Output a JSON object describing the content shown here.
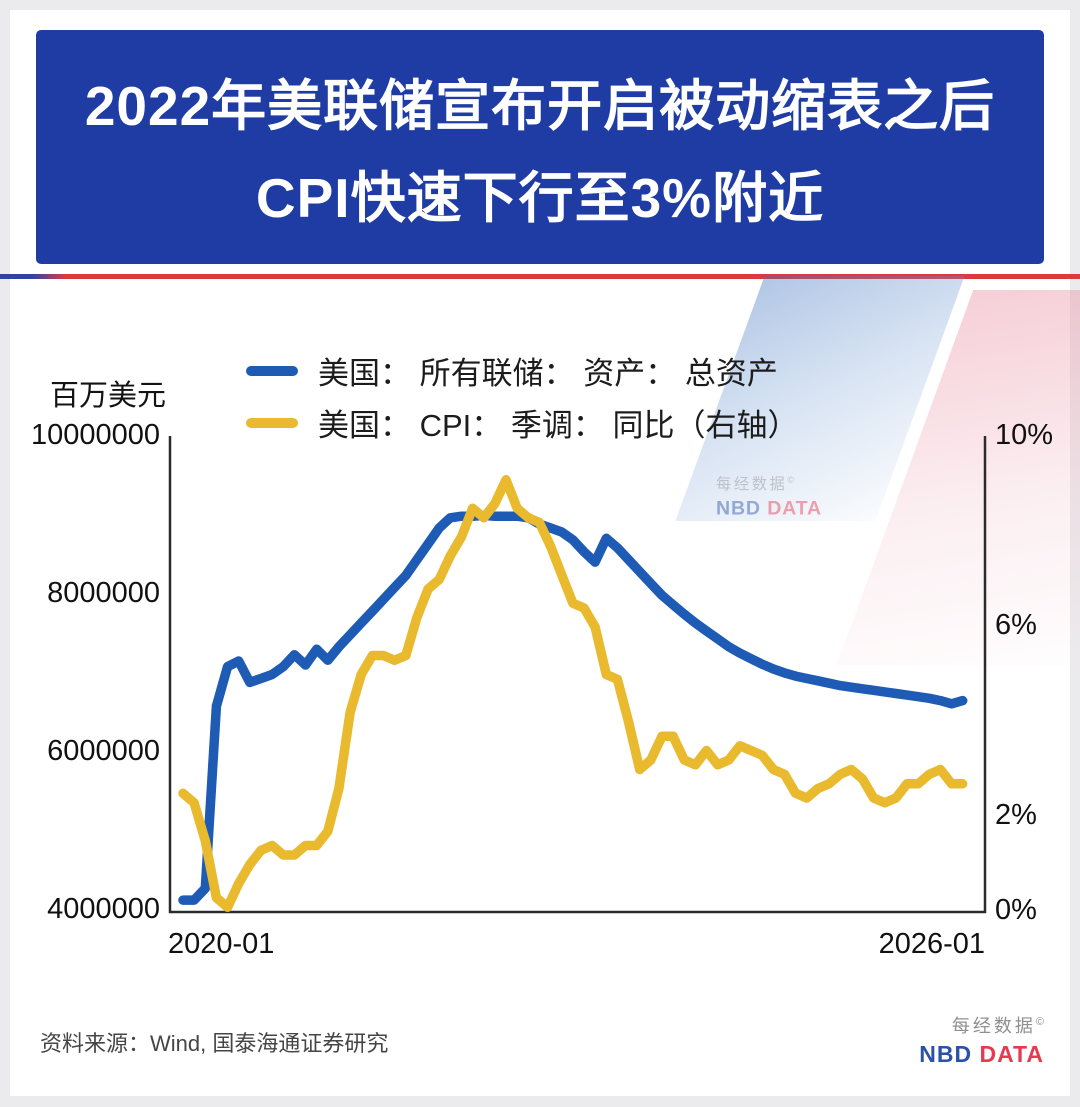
{
  "title": {
    "line1": "2022年美联储宣布开启被动缩表之后",
    "line2": "CPI快速下行至3%附近"
  },
  "legend": [
    {
      "label": "美国： 所有联储： 资产： 总资产",
      "color": "#1d5bb4"
    },
    {
      "label": "美国： CPI： 季调： 同比（右轴）",
      "color": "#e9b92e"
    }
  ],
  "axis": {
    "unit_label": "百万美元",
    "left_ticks": [
      "10000000",
      "8000000",
      "6000000",
      "4000000"
    ],
    "right_ticks": [
      "10%",
      "6%",
      "2%",
      "0%"
    ],
    "x_ticks": [
      "2020-01",
      "2026-01"
    ]
  },
  "footer": {
    "source": "资料来源：Wind, 国泰海通证券研究"
  },
  "brand": {
    "cn": "每经数据",
    "copyright": "©",
    "en_blue": "NBD",
    "en_red": "DATA"
  },
  "chart_data": {
    "type": "line",
    "title": "2022年美联储宣布开启被动缩表之后 CPI快速下行至3%附近",
    "x_axis": {
      "start": "2020-01",
      "end": "2026-01",
      "step_months": 1,
      "tick_labels": [
        "2020-01",
        "2026-01"
      ]
    },
    "left_axis": {
      "label": "百万美元",
      "ylim": [
        4000000,
        10000000
      ],
      "ticks": [
        10000000,
        8000000,
        6000000,
        4000000
      ]
    },
    "right_axis": {
      "label": "%",
      "ylim": [
        0,
        10
      ],
      "ticks": [
        10,
        6,
        2,
        0
      ]
    },
    "grid": false,
    "legend_position": "top-left",
    "series": [
      {
        "name": "美国： 所有联储： 资产： 总资产",
        "axis": "left",
        "unit": "百万美元",
        "color": "#1d5bb4",
        "ylim": [
          4000000,
          10000000
        ],
        "x_start": 0,
        "x_step": 1,
        "values": [
          4150000,
          4150000,
          4300000,
          6600000,
          7100000,
          7170000,
          6900000,
          6950000,
          7000000,
          7100000,
          7250000,
          7120000,
          7320000,
          7180000,
          7350000,
          7500000,
          7650000,
          7800000,
          7950000,
          8100000,
          8250000,
          8450000,
          8650000,
          8850000,
          8980000,
          9000000,
          9000000,
          9010000,
          9000000,
          9000000,
          9000000,
          8980000,
          8900000,
          8850000,
          8800000,
          8700000,
          8550000,
          8420000,
          8720000,
          8600000,
          8450000,
          8300000,
          8150000,
          8000000,
          7880000,
          7760000,
          7650000,
          7550000,
          7450000,
          7350000,
          7270000,
          7200000,
          7130000,
          7070000,
          7020000,
          6980000,
          6950000,
          6920000,
          6890000,
          6860000,
          6840000,
          6820000,
          6800000,
          6780000,
          6760000,
          6740000,
          6720000,
          6700000,
          6670000,
          6630000,
          6670000
        ]
      },
      {
        "name": "美国： CPI： 季调： 同比（右轴）",
        "axis": "right",
        "unit": "%",
        "color": "#e9b92e",
        "ylim": [
          0,
          10
        ],
        "x_start": 0,
        "x_step": 1,
        "values": [
          2.5,
          2.3,
          1.5,
          0.3,
          0.1,
          0.6,
          1.0,
          1.3,
          1.4,
          1.2,
          1.2,
          1.4,
          1.4,
          1.7,
          2.6,
          4.2,
          5.0,
          5.4,
          5.4,
          5.3,
          5.4,
          6.2,
          6.8,
          7.0,
          7.5,
          7.9,
          8.5,
          8.3,
          8.6,
          9.1,
          8.5,
          8.3,
          8.2,
          7.7,
          7.1,
          6.5,
          6.4,
          6.0,
          5.0,
          4.9,
          4.0,
          3.0,
          3.2,
          3.7,
          3.7,
          3.2,
          3.1,
          3.4,
          3.1,
          3.2,
          3.5,
          3.4,
          3.3,
          3.0,
          2.9,
          2.5,
          2.4,
          2.6,
          2.7,
          2.9,
          3.0,
          2.8,
          2.4,
          2.3,
          2.4,
          2.7,
          2.7,
          2.9,
          3.0,
          2.7,
          2.7
        ]
      }
    ]
  }
}
